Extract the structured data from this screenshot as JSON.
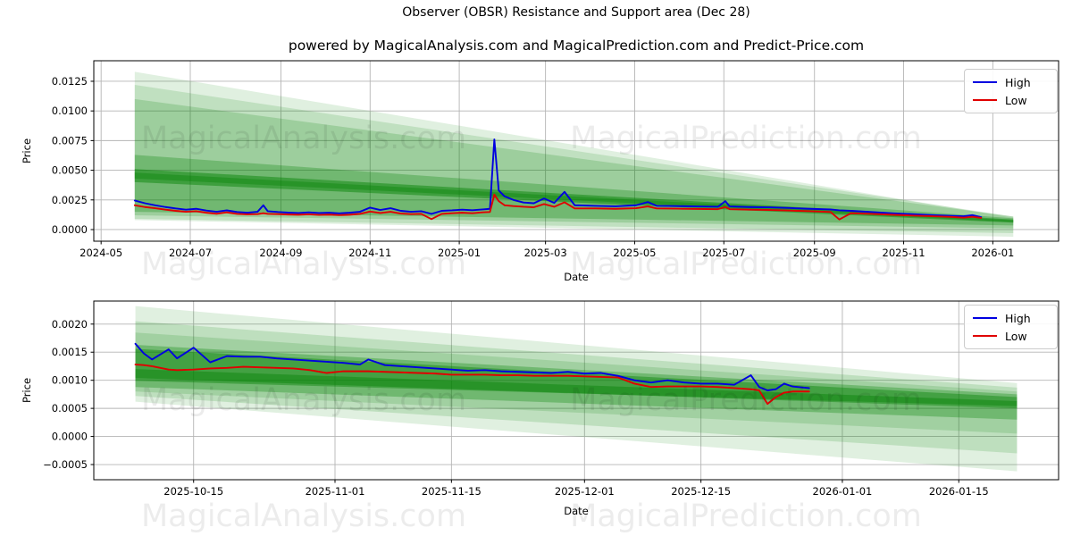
{
  "figure": {
    "title": "Observer (OBSR) Resistance and Support area (Dec 28)",
    "subtitle": "powered by MagicalAnalysis.com and MagicalPrediction.com and Predict-Price.com",
    "background": "#ffffff"
  },
  "watermarks": {
    "texts": [
      "MagicalAnalysis.com",
      "MagicalPrediction.com"
    ],
    "color": "rgba(0,0,0,0.075)"
  },
  "colors": {
    "high_line": "#0000e0",
    "low_line": "#e00000",
    "band_green": "#008000",
    "grid": "#b5b5b5",
    "spine": "#000000"
  },
  "chart_data": [
    {
      "type": "line",
      "xlabel": "Date",
      "ylabel": "Price",
      "grid": true,
      "x_domain": [
        "2024-04-26",
        "2026-02-15"
      ],
      "y_domain": [
        -0.00098,
        0.01423
      ],
      "x_ticks": [
        {
          "d": "2024-05-01",
          "label": "2024-05"
        },
        {
          "d": "2024-07-01",
          "label": "2024-07"
        },
        {
          "d": "2024-09-01",
          "label": "2024-09"
        },
        {
          "d": "2024-11-01",
          "label": "2024-11"
        },
        {
          "d": "2025-01-01",
          "label": "2025-01"
        },
        {
          "d": "2025-03-01",
          "label": "2025-03"
        },
        {
          "d": "2025-05-01",
          "label": "2025-05"
        },
        {
          "d": "2025-07-01",
          "label": "2025-07"
        },
        {
          "d": "2025-09-01",
          "label": "2025-09"
        },
        {
          "d": "2025-11-01",
          "label": "2025-11"
        },
        {
          "d": "2026-01-01",
          "label": "2026-01"
        }
      ],
      "y_ticks": [
        {
          "v": 0.0,
          "label": "0.0000"
        },
        {
          "v": 0.0025,
          "label": "0.0025"
        },
        {
          "v": 0.005,
          "label": "0.0050"
        },
        {
          "v": 0.0075,
          "label": "0.0075"
        },
        {
          "v": 0.01,
          "label": "0.0100"
        },
        {
          "v": 0.0125,
          "label": "0.0125"
        }
      ],
      "legend": {
        "position": "upper right",
        "items": [
          {
            "label": "High",
            "color": "#0000e0"
          },
          {
            "label": "Low",
            "color": "#e00000"
          }
        ]
      },
      "bands": {
        "color": "#008000",
        "wedges": [
          {
            "x0": "2024-05-24",
            "x1": "2026-01-15",
            "top0": 0.0133,
            "bot0": 0.0008,
            "top1": 0.001,
            "bot1": -0.0006,
            "alpha": 0.12
          },
          {
            "x0": "2024-05-24",
            "x1": "2026-01-15",
            "top0": 0.0122,
            "bot0": 0.0009,
            "top1": 0.0011,
            "bot1": -0.0003,
            "alpha": 0.14
          },
          {
            "x0": "2024-05-24",
            "x1": "2026-01-15",
            "top0": 0.011,
            "bot0": 0.0012,
            "top1": 0.0011,
            "bot1": 0.0001,
            "alpha": 0.18
          },
          {
            "x0": "2024-05-24",
            "x1": "2026-01-15",
            "top0": 0.0063,
            "bot0": 0.0015,
            "top1": 0.00095,
            "bot1": 0.00035,
            "alpha": 0.28
          },
          {
            "x0": "2024-05-24",
            "x1": "2026-01-15",
            "top0": 0.0051,
            "bot0": 0.004,
            "top1": 0.00085,
            "bot1": 0.00058,
            "alpha": 0.45
          },
          {
            "x0": "2024-05-24",
            "x1": "2026-01-15",
            "top0": 0.0048,
            "bot0": 0.0043,
            "top1": 0.00078,
            "bot1": 0.00064,
            "alpha": 0.35
          }
        ]
      },
      "series": [
        {
          "name": "High",
          "color": "#0000e0",
          "dates": [
            "2024-05-24",
            "2024-05-31",
            "2024-06-07",
            "2024-06-14",
            "2024-06-21",
            "2024-06-28",
            "2024-07-05",
            "2024-07-12",
            "2024-07-19",
            "2024-07-26",
            "2024-08-02",
            "2024-08-09",
            "2024-08-16",
            "2024-08-20",
            "2024-08-23",
            "2024-08-30",
            "2024-09-06",
            "2024-09-13",
            "2024-09-20",
            "2024-09-27",
            "2024-10-04",
            "2024-10-11",
            "2024-10-18",
            "2024-10-25",
            "2024-11-01",
            "2024-11-08",
            "2024-11-15",
            "2024-11-22",
            "2024-11-29",
            "2024-12-06",
            "2024-12-13",
            "2024-12-20",
            "2024-12-27",
            "2025-01-03",
            "2025-01-10",
            "2025-01-17",
            "2025-01-22",
            "2025-01-25",
            "2025-01-28",
            "2025-02-01",
            "2025-02-07",
            "2025-02-14",
            "2025-02-21",
            "2025-02-28",
            "2025-03-07",
            "2025-03-14",
            "2025-03-21",
            "2025-04-04",
            "2025-04-18",
            "2025-05-02",
            "2025-05-10",
            "2025-05-16",
            "2025-05-30",
            "2025-06-13",
            "2025-06-27",
            "2025-07-02",
            "2025-07-05",
            "2025-07-18",
            "2025-08-01",
            "2025-08-15",
            "2025-08-29",
            "2025-09-12",
            "2025-09-18",
            "2025-09-26",
            "2025-10-10",
            "2025-10-24",
            "2025-11-07",
            "2025-11-21",
            "2025-12-05",
            "2025-12-12",
            "2025-12-18",
            "2025-12-24"
          ],
          "values": [
            0.00245,
            0.00222,
            0.00205,
            0.0019,
            0.00178,
            0.00168,
            0.00175,
            0.0016,
            0.0015,
            0.00162,
            0.00148,
            0.00142,
            0.0015,
            0.00205,
            0.00155,
            0.00148,
            0.00143,
            0.0014,
            0.00145,
            0.0014,
            0.00142,
            0.00137,
            0.00142,
            0.0015,
            0.00185,
            0.00165,
            0.0018,
            0.00158,
            0.0015,
            0.00155,
            0.00132,
            0.00158,
            0.00162,
            0.00168,
            0.00163,
            0.0017,
            0.00175,
            0.0076,
            0.0033,
            0.0028,
            0.0025,
            0.00228,
            0.00222,
            0.00262,
            0.00225,
            0.00318,
            0.00205,
            0.002,
            0.00196,
            0.00205,
            0.00232,
            0.002,
            0.00198,
            0.00195,
            0.00192,
            0.0024,
            0.00195,
            0.0019,
            0.00188,
            0.00182,
            0.00175,
            0.0017,
            0.00162,
            0.00158,
            0.00148,
            0.00138,
            0.0013,
            0.00122,
            0.00115,
            0.00112,
            0.00122,
            0.00105
          ]
        },
        {
          "name": "Low",
          "color": "#e00000",
          "dates": [
            "2024-05-24",
            "2024-05-31",
            "2024-06-07",
            "2024-06-14",
            "2024-06-21",
            "2024-06-28",
            "2024-07-05",
            "2024-07-12",
            "2024-07-19",
            "2024-07-26",
            "2024-08-02",
            "2024-08-09",
            "2024-08-16",
            "2024-08-20",
            "2024-08-23",
            "2024-08-30",
            "2024-09-06",
            "2024-09-13",
            "2024-09-20",
            "2024-09-27",
            "2024-10-04",
            "2024-10-11",
            "2024-10-18",
            "2024-10-25",
            "2024-11-01",
            "2024-11-08",
            "2024-11-15",
            "2024-11-22",
            "2024-11-29",
            "2024-12-06",
            "2024-12-13",
            "2024-12-20",
            "2024-12-27",
            "2025-01-03",
            "2025-01-10",
            "2025-01-17",
            "2025-01-22",
            "2025-01-25",
            "2025-01-28",
            "2025-02-01",
            "2025-02-07",
            "2025-02-14",
            "2025-02-21",
            "2025-02-28",
            "2025-03-07",
            "2025-03-14",
            "2025-03-21",
            "2025-04-04",
            "2025-04-18",
            "2025-05-02",
            "2025-05-10",
            "2025-05-16",
            "2025-05-30",
            "2025-06-13",
            "2025-06-27",
            "2025-07-02",
            "2025-07-05",
            "2025-07-18",
            "2025-08-01",
            "2025-08-15",
            "2025-08-29",
            "2025-09-12",
            "2025-09-18",
            "2025-09-26",
            "2025-10-10",
            "2025-10-24",
            "2025-11-07",
            "2025-11-21",
            "2025-12-05",
            "2025-12-12",
            "2025-12-18",
            "2025-12-24"
          ],
          "values": [
            0.00205,
            0.0019,
            0.0018,
            0.00168,
            0.00158,
            0.0015,
            0.00155,
            0.00142,
            0.00133,
            0.00145,
            0.00132,
            0.00128,
            0.0013,
            0.00138,
            0.00132,
            0.0013,
            0.00127,
            0.00125,
            0.00128,
            0.00124,
            0.00126,
            0.00122,
            0.00125,
            0.00132,
            0.00152,
            0.0014,
            0.0015,
            0.00135,
            0.0013,
            0.00132,
            0.00088,
            0.00132,
            0.00138,
            0.00142,
            0.00138,
            0.00145,
            0.00148,
            0.00295,
            0.0024,
            0.00205,
            0.00198,
            0.00192,
            0.00188,
            0.00215,
            0.00192,
            0.0023,
            0.00178,
            0.00178,
            0.00175,
            0.0018,
            0.00195,
            0.00178,
            0.00176,
            0.00174,
            0.00172,
            0.0019,
            0.00172,
            0.00168,
            0.00165,
            0.0016,
            0.00155,
            0.00148,
            0.00085,
            0.00138,
            0.00132,
            0.00125,
            0.00118,
            0.00112,
            0.00106,
            0.001,
            0.00108,
            0.00098
          ]
        }
      ]
    },
    {
      "type": "line",
      "xlabel": "Date",
      "ylabel": "Price",
      "grid": true,
      "x_domain": [
        "2025-10-03",
        "2026-01-27"
      ],
      "y_domain": [
        -0.00077,
        0.00241
      ],
      "x_ticks": [
        {
          "d": "2025-10-15",
          "label": "2025-10-15"
        },
        {
          "d": "2025-11-01",
          "label": "2025-11-01"
        },
        {
          "d": "2025-11-15",
          "label": "2025-11-15"
        },
        {
          "d": "2025-12-01",
          "label": "2025-12-01"
        },
        {
          "d": "2025-12-15",
          "label": "2025-12-15"
        },
        {
          "d": "2026-01-01",
          "label": "2026-01-01"
        },
        {
          "d": "2026-01-15",
          "label": "2026-01-15"
        }
      ],
      "y_ticks": [
        {
          "v": -0.0005,
          "label": "−0.0005"
        },
        {
          "v": 0.0,
          "label": "0.0000"
        },
        {
          "v": 0.0005,
          "label": "0.0005"
        },
        {
          "v": 0.001,
          "label": "0.0010"
        },
        {
          "v": 0.0015,
          "label": "0.0015"
        },
        {
          "v": 0.002,
          "label": "0.0020"
        }
      ],
      "legend": {
        "position": "upper right",
        "items": [
          {
            "label": "High",
            "color": "#0000e0"
          },
          {
            "label": "Low",
            "color": "#e00000"
          }
        ]
      },
      "bands": {
        "color": "#008000",
        "wedges": [
          {
            "x0": "2025-10-08",
            "x1": "2026-01-22",
            "top0": 0.00232,
            "bot0": 0.00062,
            "top1": 0.00095,
            "bot1": -0.00062,
            "alpha": 0.12
          },
          {
            "x0": "2025-10-08",
            "x1": "2026-01-22",
            "top0": 0.00205,
            "bot0": 0.00072,
            "top1": 0.00087,
            "bot1": -0.0003,
            "alpha": 0.15
          },
          {
            "x0": "2025-10-08",
            "x1": "2026-01-22",
            "top0": 0.00185,
            "bot0": 0.0008,
            "top1": 0.0008,
            "bot1": 5e-05,
            "alpha": 0.15
          },
          {
            "x0": "2025-10-08",
            "x1": "2026-01-22",
            "top0": 0.00163,
            "bot0": 0.00088,
            "top1": 0.00075,
            "bot1": 0.0003,
            "alpha": 0.3
          },
          {
            "x0": "2025-10-08",
            "x1": "2026-01-22",
            "top0": 0.00156,
            "bot0": 0.00104,
            "top1": 0.0007,
            "bot1": 0.0005,
            "alpha": 0.4
          },
          {
            "x0": "2025-10-08",
            "x1": "2026-01-22",
            "top0": 0.0012,
            "bot0": 0.00099,
            "top1": 0.00063,
            "bot1": 0.00054,
            "alpha": 0.4
          }
        ]
      },
      "series": [
        {
          "name": "High",
          "color": "#0000e0",
          "dates": [
            "2025-10-08",
            "2025-10-09",
            "2025-10-10",
            "2025-10-12",
            "2025-10-13",
            "2025-10-15",
            "2025-10-17",
            "2025-10-19",
            "2025-10-21",
            "2025-10-23",
            "2025-10-25",
            "2025-10-27",
            "2025-10-29",
            "2025-10-31",
            "2025-11-02",
            "2025-11-04",
            "2025-11-05",
            "2025-11-07",
            "2025-11-09",
            "2025-11-11",
            "2025-11-13",
            "2025-11-15",
            "2025-11-17",
            "2025-11-19",
            "2025-11-21",
            "2025-11-23",
            "2025-11-25",
            "2025-11-27",
            "2025-11-29",
            "2025-12-01",
            "2025-12-03",
            "2025-12-05",
            "2025-12-07",
            "2025-12-09",
            "2025-12-11",
            "2025-12-13",
            "2025-12-15",
            "2025-12-17",
            "2025-12-19",
            "2025-12-21",
            "2025-12-22",
            "2025-12-23",
            "2025-12-24",
            "2025-12-25",
            "2025-12-26",
            "2025-12-28"
          ],
          "values": [
            0.00165,
            0.00148,
            0.00137,
            0.00155,
            0.00139,
            0.00158,
            0.00132,
            0.00143,
            0.00142,
            0.00142,
            0.00139,
            0.00137,
            0.00135,
            0.00133,
            0.00131,
            0.00128,
            0.00137,
            0.00127,
            0.00125,
            0.00123,
            0.00121,
            0.00119,
            0.00117,
            0.00118,
            0.00116,
            0.00115,
            0.00114,
            0.00113,
            0.00115,
            0.00112,
            0.00113,
            0.00108,
            0.001,
            0.00096,
            0.001,
            0.00096,
            0.00094,
            0.00094,
            0.00092,
            0.00109,
            0.00088,
            0.00082,
            0.00084,
            0.00094,
            0.00089,
            0.00086
          ]
        },
        {
          "name": "Low",
          "color": "#e00000",
          "dates": [
            "2025-10-08",
            "2025-10-09",
            "2025-10-10",
            "2025-10-12",
            "2025-10-13",
            "2025-10-15",
            "2025-10-17",
            "2025-10-19",
            "2025-10-21",
            "2025-10-23",
            "2025-10-25",
            "2025-10-27",
            "2025-10-29",
            "2025-10-31",
            "2025-11-02",
            "2025-11-04",
            "2025-11-05",
            "2025-11-07",
            "2025-11-09",
            "2025-11-11",
            "2025-11-13",
            "2025-11-15",
            "2025-11-17",
            "2025-11-19",
            "2025-11-21",
            "2025-11-23",
            "2025-11-25",
            "2025-11-27",
            "2025-11-29",
            "2025-12-01",
            "2025-12-03",
            "2025-12-05",
            "2025-12-07",
            "2025-12-09",
            "2025-12-11",
            "2025-12-13",
            "2025-12-15",
            "2025-12-17",
            "2025-12-19",
            "2025-12-21",
            "2025-12-22",
            "2025-12-23",
            "2025-12-24",
            "2025-12-25",
            "2025-12-26",
            "2025-12-28"
          ],
          "values": [
            0.00128,
            0.00127,
            0.00125,
            0.00119,
            0.00118,
            0.00119,
            0.00121,
            0.00122,
            0.00124,
            0.00123,
            0.00122,
            0.00121,
            0.00118,
            0.00113,
            0.00116,
            0.00116,
            0.00116,
            0.00115,
            0.00114,
            0.00113,
            0.00112,
            0.0011,
            0.0011,
            0.0011,
            0.00109,
            0.00109,
            0.00108,
            0.00108,
            0.00108,
            0.00107,
            0.00106,
            0.00105,
            0.00094,
            0.00088,
            0.00089,
            0.00089,
            0.00089,
            0.00088,
            0.00086,
            0.00084,
            0.00082,
            0.00058,
            0.0007,
            0.00078,
            0.0008,
            0.0008
          ]
        }
      ]
    }
  ]
}
